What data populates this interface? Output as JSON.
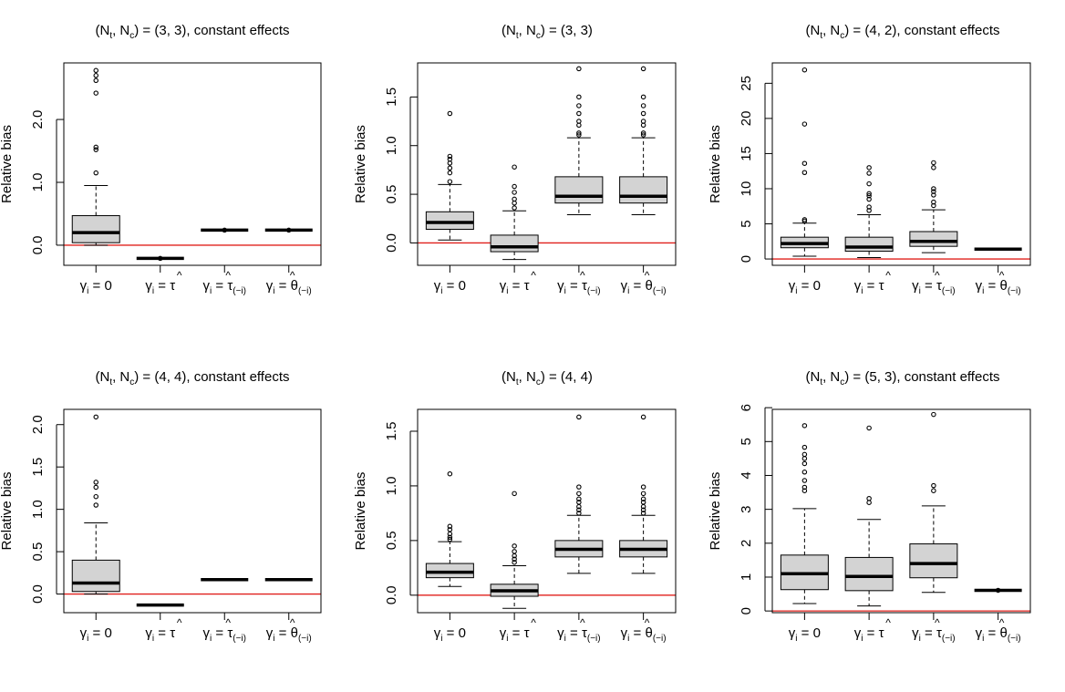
{
  "chart_data": [
    {
      "type": "box",
      "title": {
        "main": "(N",
        "sub1": "t",
        "mid": ", N",
        "sub2": "c",
        "tail": ") = (3, 3), constant effects"
      },
      "ylabel": "Relative bias",
      "ylim": [
        -0.32,
        2.9
      ],
      "yticks": [
        0.0,
        1.0,
        2.0
      ],
      "ytick_labels": [
        "0.0",
        "1.0",
        "2.0"
      ],
      "reference_line": 0,
      "categories": [
        "gamma_0",
        "tau_hat",
        "tau_hat_minus_i",
        "theta_hat_minus_i"
      ],
      "boxes": [
        {
          "min": 0.0,
          "q1": 0.04,
          "median": 0.2,
          "q3": 0.47,
          "max": 0.95,
          "outliers": [
            1.15,
            1.52,
            1.56,
            2.42,
            2.62,
            2.7,
            2.78
          ]
        },
        {
          "min": -0.21,
          "q1": -0.21,
          "median": -0.21,
          "q3": -0.21,
          "max": -0.21,
          "outliers": [
            -0.21
          ]
        },
        {
          "min": 0.24,
          "q1": 0.24,
          "median": 0.24,
          "q3": 0.24,
          "max": 0.24,
          "outliers": [
            0.24
          ]
        },
        {
          "min": 0.24,
          "q1": 0.24,
          "median": 0.24,
          "q3": 0.24,
          "max": 0.24,
          "outliers": [
            0.24
          ]
        }
      ]
    },
    {
      "type": "box",
      "title": {
        "main": "(N",
        "sub1": "t",
        "mid": ", N",
        "sub2": "c",
        "tail": ") = (3, 3)"
      },
      "ylabel": "Relative bias",
      "ylim": [
        -0.23,
        1.85
      ],
      "yticks": [
        0.0,
        0.5,
        1.0,
        1.5
      ],
      "ytick_labels": [
        "0.0",
        "0.5",
        "1.0",
        "1.5"
      ],
      "reference_line": 0,
      "categories": [
        "gamma_0",
        "tau_hat",
        "tau_hat_minus_i",
        "theta_hat_minus_i"
      ],
      "boxes": [
        {
          "min": 0.03,
          "q1": 0.14,
          "median": 0.21,
          "q3": 0.32,
          "max": 0.6,
          "outliers": [
            0.63,
            0.72,
            0.77,
            0.82,
            0.86,
            0.89,
            1.33
          ]
        },
        {
          "min": -0.17,
          "q1": -0.09,
          "median": -0.04,
          "q3": 0.08,
          "max": 0.33,
          "outliers": [
            0.36,
            0.41,
            0.45,
            0.52,
            0.58,
            0.78
          ]
        },
        {
          "min": 0.29,
          "q1": 0.41,
          "median": 0.48,
          "q3": 0.68,
          "max": 1.08,
          "outliers": [
            1.11,
            1.13,
            1.21,
            1.25,
            1.33,
            1.41,
            1.5,
            1.79
          ]
        },
        {
          "min": 0.29,
          "q1": 0.41,
          "median": 0.48,
          "q3": 0.68,
          "max": 1.08,
          "outliers": [
            1.11,
            1.13,
            1.21,
            1.25,
            1.33,
            1.41,
            1.5,
            1.79
          ]
        }
      ]
    },
    {
      "type": "box",
      "title": {
        "main": "(N",
        "sub1": "t",
        "mid": ", N",
        "sub2": "c",
        "tail": ") = (4, 2), constant effects"
      },
      "ylabel": "Relative bias",
      "ylim": [
        -0.9,
        27.9
      ],
      "yticks": [
        0,
        5,
        10,
        15,
        20,
        25
      ],
      "ytick_labels": [
        "0",
        "5",
        "10",
        "15",
        "20",
        "25"
      ],
      "reference_line": 0,
      "categories": [
        "gamma_0",
        "tau_hat",
        "tau_hat_minus_i",
        "theta_hat_minus_i"
      ],
      "boxes": [
        {
          "min": 0.4,
          "q1": 1.6,
          "median": 2.2,
          "q3": 3.1,
          "max": 5.1,
          "outliers": [
            5.4,
            5.6,
            12.3,
            13.6,
            19.2,
            26.9
          ]
        },
        {
          "min": 0.2,
          "q1": 1.1,
          "median": 1.7,
          "q3": 3.1,
          "max": 6.3,
          "outliers": [
            6.9,
            7.4,
            8.5,
            9.0,
            9.3,
            10.7,
            12.2,
            13.0
          ]
        },
        {
          "min": 0.9,
          "q1": 1.8,
          "median": 2.5,
          "q3": 3.9,
          "max": 7.0,
          "outliers": [
            7.6,
            8.1,
            9.1,
            9.6,
            10.0,
            13.0,
            13.7
          ]
        },
        {
          "min": 1.4,
          "q1": 1.4,
          "median": 1.4,
          "q3": 1.4,
          "max": 1.4,
          "outliers": []
        }
      ]
    },
    {
      "type": "box",
      "title": {
        "main": "(N",
        "sub1": "t",
        "mid": ", N",
        "sub2": "c",
        "tail": ") = (4, 4), constant effects"
      },
      "ylabel": "Relative bias",
      "ylim": [
        -0.22,
        2.18
      ],
      "yticks": [
        0.0,
        0.5,
        1.0,
        1.5,
        2.0
      ],
      "ytick_labels": [
        "0.0",
        "0.5",
        "1.0",
        "1.5",
        "2.0"
      ],
      "reference_line": 0,
      "categories": [
        "gamma_0",
        "tau_hat",
        "tau_hat_minus_i",
        "theta_hat_minus_i"
      ],
      "boxes": [
        {
          "min": 0.0,
          "q1": 0.03,
          "median": 0.13,
          "q3": 0.4,
          "max": 0.84,
          "outliers": [
            1.05,
            1.15,
            1.26,
            1.32,
            2.09
          ]
        },
        {
          "min": -0.13,
          "q1": -0.13,
          "median": -0.13,
          "q3": -0.13,
          "max": -0.13,
          "outliers": []
        },
        {
          "min": 0.17,
          "q1": 0.17,
          "median": 0.17,
          "q3": 0.17,
          "max": 0.17,
          "outliers": []
        },
        {
          "min": 0.17,
          "q1": 0.17,
          "median": 0.17,
          "q3": 0.17,
          "max": 0.17,
          "outliers": []
        }
      ]
    },
    {
      "type": "box",
      "title": {
        "main": "(N",
        "sub1": "t",
        "mid": ", N",
        "sub2": "c",
        "tail": ") = (4, 4)"
      },
      "ylabel": "Relative bias",
      "ylim": [
        -0.16,
        1.7
      ],
      "yticks": [
        0.0,
        0.5,
        1.0,
        1.5
      ],
      "ytick_labels": [
        "0.0",
        "0.5",
        "1.0",
        "1.5"
      ],
      "reference_line": 0,
      "categories": [
        "gamma_0",
        "tau_hat",
        "tau_hat_minus_i",
        "theta_hat_minus_i"
      ],
      "boxes": [
        {
          "min": 0.08,
          "q1": 0.16,
          "median": 0.21,
          "q3": 0.29,
          "max": 0.49,
          "outliers": [
            0.51,
            0.53,
            0.56,
            0.6,
            0.63,
            1.11
          ]
        },
        {
          "min": -0.12,
          "q1": -0.01,
          "median": 0.04,
          "q3": 0.1,
          "max": 0.27,
          "outliers": [
            0.3,
            0.33,
            0.36,
            0.4,
            0.45,
            0.93
          ]
        },
        {
          "min": 0.2,
          "q1": 0.35,
          "median": 0.42,
          "q3": 0.5,
          "max": 0.73,
          "outliers": [
            0.75,
            0.78,
            0.81,
            0.85,
            0.88,
            0.93,
            0.99,
            1.63
          ]
        },
        {
          "min": 0.2,
          "q1": 0.35,
          "median": 0.42,
          "q3": 0.5,
          "max": 0.73,
          "outliers": [
            0.75,
            0.78,
            0.81,
            0.85,
            0.88,
            0.93,
            0.99,
            1.63
          ]
        }
      ]
    },
    {
      "type": "box",
      "title": {
        "main": "(N",
        "sub1": "t",
        "mid": ", N",
        "sub2": "c",
        "tail": ") = (5, 3), constant effects"
      },
      "ylabel": "Relative bias",
      "ylim": [
        -0.05,
        5.95
      ],
      "yticks": [
        0,
        1,
        2,
        3,
        4,
        5,
        6
      ],
      "ytick_labels": [
        "0",
        "1",
        "2",
        "3",
        "4",
        "5",
        "6"
      ],
      "reference_line": 0,
      "categories": [
        "gamma_0",
        "tau_hat",
        "tau_hat_minus_i",
        "theta_hat_minus_i"
      ],
      "boxes": [
        {
          "min": 0.22,
          "q1": 0.63,
          "median": 1.1,
          "q3": 1.65,
          "max": 3.02,
          "outliers": [
            3.55,
            3.65,
            3.85,
            4.1,
            4.35,
            4.5,
            4.62,
            4.83,
            5.47
          ]
        },
        {
          "min": 0.15,
          "q1": 0.6,
          "median": 1.02,
          "q3": 1.58,
          "max": 2.7,
          "outliers": [
            3.2,
            3.32,
            5.4
          ]
        },
        {
          "min": 0.55,
          "q1": 0.98,
          "median": 1.4,
          "q3": 1.98,
          "max": 3.1,
          "outliers": [
            3.55,
            3.7,
            5.8
          ]
        },
        {
          "min": 0.61,
          "q1": 0.61,
          "median": 0.61,
          "q3": 0.61,
          "max": 0.61,
          "outliers": [
            0.61
          ]
        }
      ]
    }
  ],
  "category_labels": [
    {
      "lhs": "γ",
      "sub": "i",
      "rhs": " = 0",
      "hat_symbol": "",
      "hat_sub": ""
    },
    {
      "lhs": "γ",
      "sub": "i",
      "rhs": " = ",
      "hat_symbol": "τ",
      "hat_sub": ""
    },
    {
      "lhs": "γ",
      "sub": "i",
      "rhs": " = ",
      "hat_symbol": "τ",
      "hat_sub": "(−i)"
    },
    {
      "lhs": "γ",
      "sub": "i",
      "rhs": " = ",
      "hat_symbol": "θ",
      "hat_sub": "(−i)"
    }
  ],
  "hat_glyph": "^",
  "colors": {
    "box_fill": "#d3d3d3",
    "reference_line": "#e0201c",
    "ink": "#000000"
  }
}
